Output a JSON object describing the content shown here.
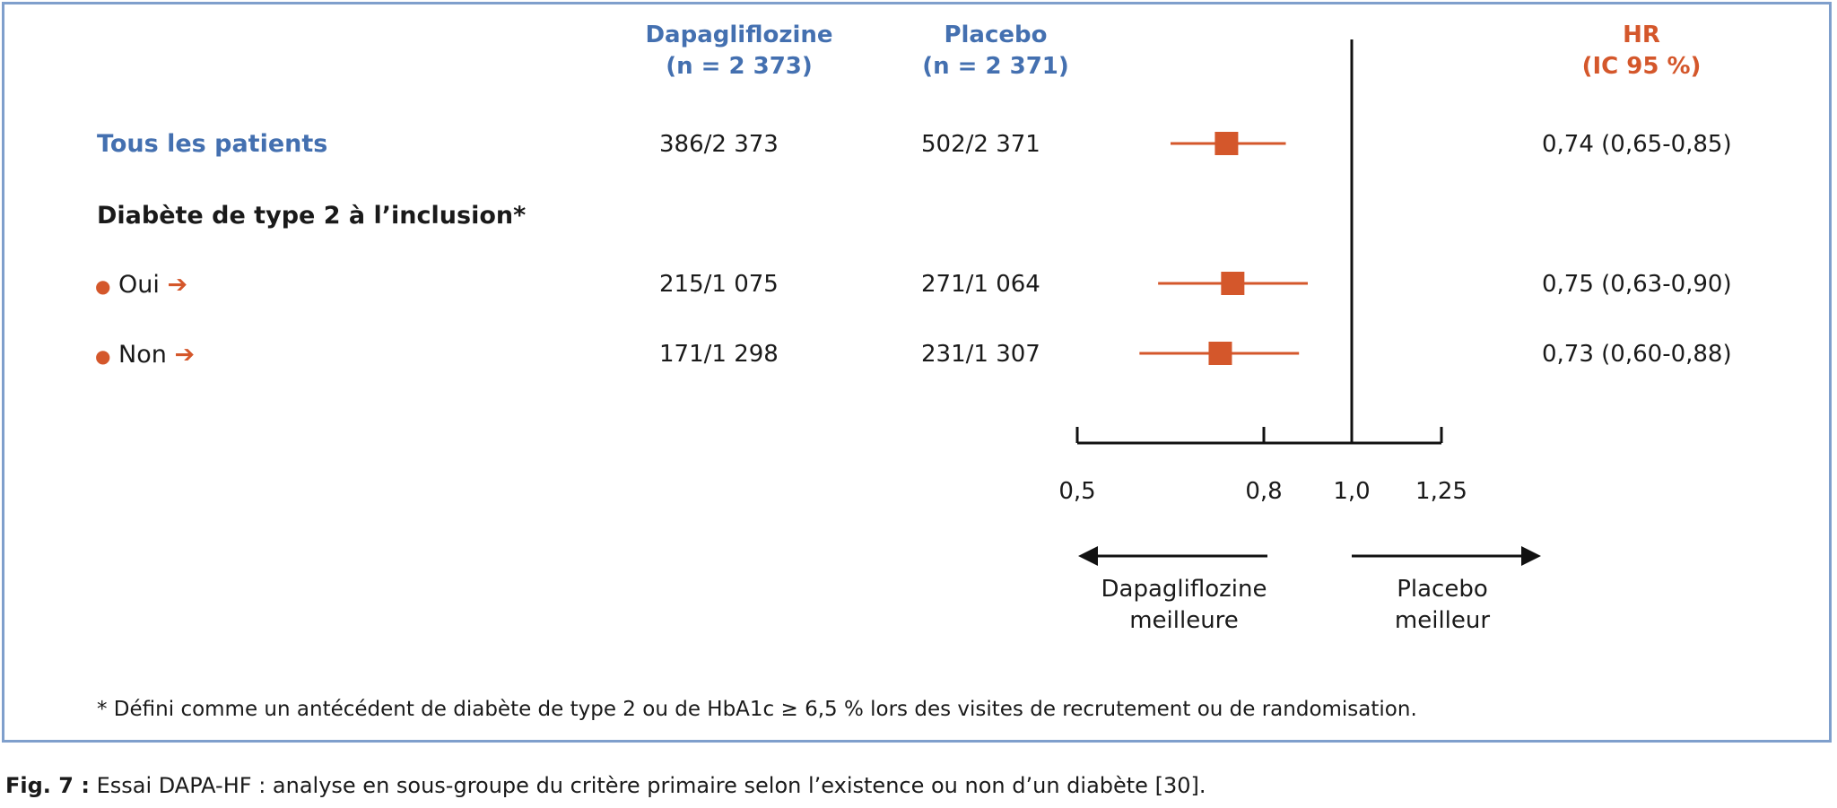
{
  "columns": {
    "dapa": {
      "title": "Dapagliflozine",
      "n": "(n = 2 373)"
    },
    "placebo": {
      "title": "Placebo",
      "n": "(n = 2 371)"
    },
    "hr": {
      "title": "HR",
      "ci": "(IC 95 %)"
    }
  },
  "rows": [
    {
      "label": "Tous les patients",
      "dapa": "386/2 373",
      "placebo": "502/2 371",
      "hr_text": "0,74 (0,65-0,85)"
    },
    {
      "label": "Diabète de type 2 à l’inclusion*"
    },
    {
      "bullet": "●",
      "label": "Oui",
      "arrow": "➔",
      "dapa": "215/1 075",
      "placebo": "271/1 064",
      "hr_text": "0,75 (0,63-0,90)"
    },
    {
      "bullet": "●",
      "label": "Non",
      "arrow": "➔",
      "dapa": "171/1 298",
      "placebo": "231/1 307",
      "hr_text": "0,73 (0,60-0,88)"
    }
  ],
  "chart_data": {
    "type": "forest",
    "x_ticks": [
      0.5,
      0.8,
      1.0,
      1.25
    ],
    "x_tick_labels": [
      "0,5",
      "0,8",
      "1,0",
      "1,25"
    ],
    "xlim": [
      0.5,
      1.25
    ],
    "reference_line": 1.0,
    "series": [
      {
        "label": "Tous les patients",
        "hr": 0.74,
        "ci_low": 0.65,
        "ci_high": 0.85
      },
      {
        "label": "Oui",
        "hr": 0.75,
        "ci_low": 0.63,
        "ci_high": 0.9
      },
      {
        "label": "Non",
        "hr": 0.73,
        "ci_low": 0.6,
        "ci_high": 0.88
      }
    ],
    "favors_left": [
      "Dapagliflozine",
      "meilleure"
    ],
    "favors_right": [
      "Placebo",
      "meilleur"
    ],
    "color": "#d4572b"
  },
  "footnote": "* Défini comme un antécédent de diabète de type 2 ou de HbA1c ≥ 6,5 % lors des visites de recrutement ou de randomisation.",
  "caption": {
    "prefix": "Fig. 7 :",
    "text": " Essai DAPA-HF : analyse en sous-groupe du critère primaire selon l’existence ou non d’un diabète [30]."
  },
  "colors": {
    "blue": "#4470b0",
    "orange": "#d4572b",
    "frame": "#7f9fcc"
  }
}
